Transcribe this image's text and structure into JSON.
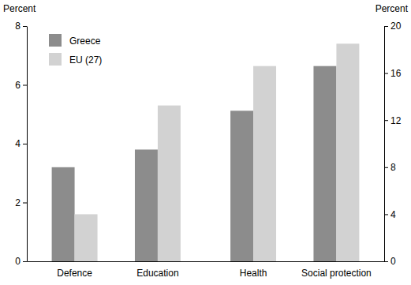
{
  "chart_data": [
    {
      "type": "bar",
      "y_label": "Percent",
      "categories": [
        "Defence",
        "Education"
      ],
      "series": [
        {
          "name": "Greece",
          "color": "#8c8c8c",
          "values": [
            3.2,
            3.8
          ]
        },
        {
          "name": "EU (27)",
          "color": "#d2d2d2",
          "values": [
            1.6,
            5.3
          ]
        }
      ],
      "ylim": [
        0,
        8
      ],
      "yticks": [
        0,
        2,
        4,
        6,
        8
      ],
      "legend": "upper left",
      "grid": false
    },
    {
      "type": "bar",
      "y2_label": "Percent",
      "categories": [
        "Health",
        "Social protection"
      ],
      "series": [
        {
          "color": "#8c8c8c",
          "values": [
            12.8,
            16.6
          ],
          "axis": "y2"
        },
        {
          "color": "#d2d2d2",
          "values": [
            16.6,
            18.5
          ],
          "axis": "y2"
        }
      ],
      "y2lim": [
        0,
        20
      ],
      "y2ticks": [
        0,
        4,
        8,
        12,
        16,
        20
      ],
      "grid": false
    }
  ]
}
